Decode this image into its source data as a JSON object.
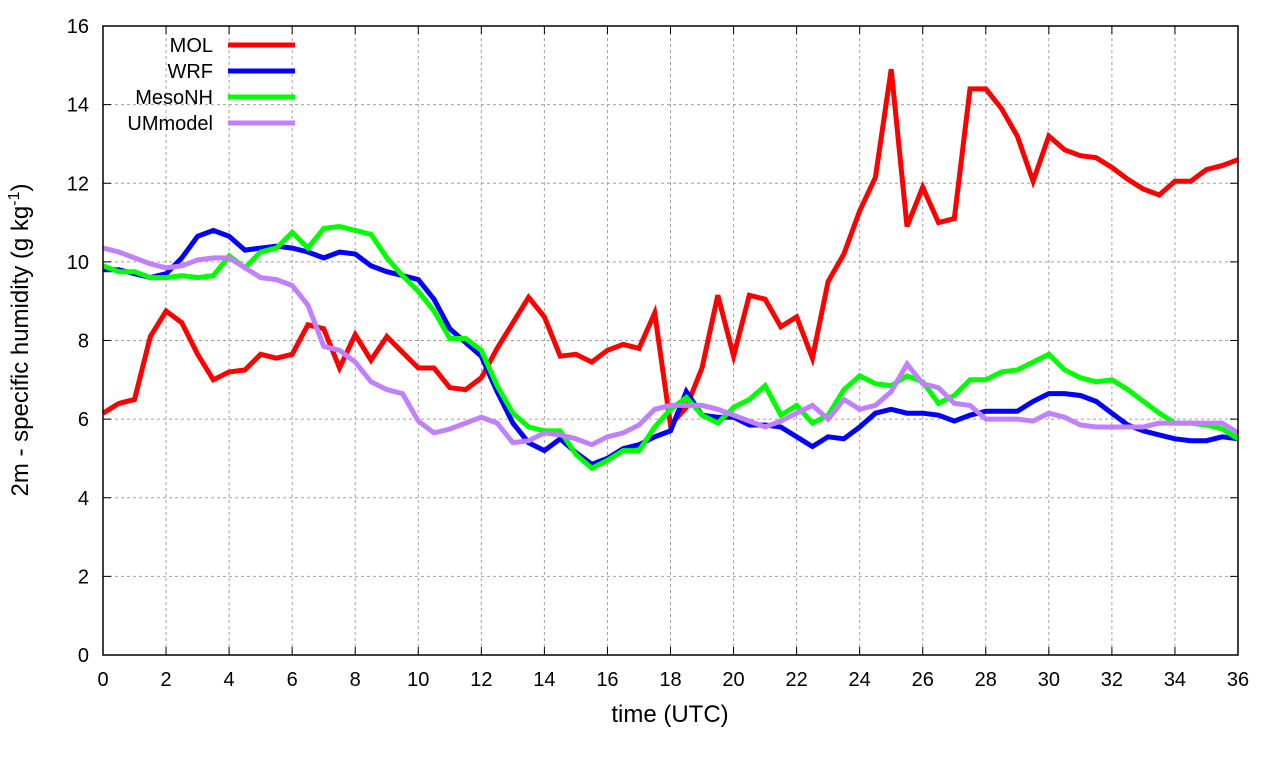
{
  "chart_data": {
    "type": "line",
    "title": "",
    "xlabel": "time (UTC)",
    "ylabel": "2m - specific humidity (g kg",
    "ylabel_sup": "-1",
    "ylabel_close": ")",
    "xlim": [
      0,
      36
    ],
    "ylim": [
      0,
      16
    ],
    "xticks": [
      0,
      2,
      4,
      6,
      8,
      10,
      12,
      14,
      16,
      18,
      20,
      22,
      24,
      26,
      28,
      30,
      32,
      34,
      36
    ],
    "yticks": [
      0,
      2,
      4,
      6,
      8,
      10,
      12,
      14,
      16
    ],
    "grid": true,
    "legend_position": "top-left",
    "x": [
      0,
      0.5,
      1,
      1.5,
      2,
      2.5,
      3,
      3.5,
      4,
      4.5,
      5,
      5.5,
      6,
      6.5,
      7,
      7.5,
      8,
      8.5,
      9,
      9.5,
      10,
      10.5,
      11,
      11.5,
      12,
      12.5,
      13,
      13.5,
      14,
      14.5,
      15,
      15.5,
      16,
      16.5,
      17,
      17.5,
      18,
      18.5,
      19,
      19.5,
      20,
      20.5,
      21,
      21.5,
      22,
      22.5,
      23,
      23.5,
      24,
      24.5,
      25,
      25.5,
      26,
      26.5,
      27,
      27.5,
      28,
      28.5,
      29,
      29.5,
      30,
      30.5,
      31,
      31.5,
      32,
      32.5,
      33,
      33.5,
      34,
      34.5,
      35,
      35.5,
      36
    ],
    "series": [
      {
        "name": "MOL",
        "color": "#ff0000",
        "values": [
          6.15,
          6.4,
          6.5,
          8.1,
          8.75,
          8.45,
          7.65,
          7.0,
          7.2,
          7.25,
          7.65,
          7.55,
          7.65,
          8.4,
          8.3,
          7.3,
          8.15,
          7.5,
          8.1,
          7.7,
          7.3,
          7.3,
          6.8,
          6.75,
          7.05,
          7.8,
          8.45,
          9.1,
          8.6,
          7.6,
          7.65,
          7.45,
          7.75,
          7.9,
          7.8,
          8.7,
          5.85,
          6.3,
          7.3,
          9.15,
          7.6,
          9.15,
          9.05,
          8.35,
          8.6,
          7.55,
          9.5,
          10.2,
          11.3,
          12.15,
          14.9,
          10.9,
          11.9,
          11.0,
          11.1,
          14.4,
          14.4,
          13.9,
          13.2,
          12.05,
          13.2,
          12.85,
          12.7,
          12.65,
          12.4,
          12.1,
          11.85,
          11.7,
          12.05,
          12.05,
          12.35,
          12.45,
          12.6
        ]
      },
      {
        "name": "WRF",
        "color": "#0000ff",
        "values": [
          9.8,
          9.8,
          9.7,
          9.6,
          9.7,
          10.1,
          10.65,
          10.8,
          10.65,
          10.3,
          10.35,
          10.4,
          10.35,
          10.25,
          10.1,
          10.25,
          10.2,
          9.9,
          9.75,
          9.65,
          9.55,
          9.05,
          8.3,
          7.95,
          7.6,
          6.7,
          5.9,
          5.4,
          5.2,
          5.5,
          5.15,
          4.85,
          5.0,
          5.25,
          5.35,
          5.55,
          5.7,
          6.7,
          6.1,
          6.05,
          6.05,
          5.85,
          5.85,
          5.8,
          5.55,
          5.3,
          5.55,
          5.5,
          5.8,
          6.15,
          6.25,
          6.15,
          6.15,
          6.1,
          5.95,
          6.1,
          6.2,
          6.2,
          6.2,
          6.45,
          6.65,
          6.65,
          6.6,
          6.45,
          6.15,
          5.85,
          5.7,
          5.6,
          5.5,
          5.45,
          5.45,
          5.55,
          5.5
        ]
      },
      {
        "name": "MesoNH",
        "color": "#00ff00",
        "values": [
          9.9,
          9.75,
          9.75,
          9.6,
          9.6,
          9.65,
          9.6,
          9.65,
          10.15,
          9.85,
          10.25,
          10.35,
          10.75,
          10.35,
          10.85,
          10.9,
          10.8,
          10.7,
          10.1,
          9.65,
          9.25,
          8.75,
          8.05,
          8.05,
          7.75,
          6.85,
          6.15,
          5.8,
          5.7,
          5.7,
          5.1,
          4.75,
          4.95,
          5.2,
          5.2,
          5.8,
          6.25,
          6.55,
          6.1,
          5.9,
          6.3,
          6.5,
          6.85,
          6.1,
          6.35,
          5.9,
          6.1,
          6.75,
          7.1,
          6.9,
          6.85,
          7.1,
          6.95,
          6.4,
          6.6,
          7.0,
          7.0,
          7.2,
          7.25,
          7.45,
          7.65,
          7.25,
          7.05,
          6.95,
          7.0,
          6.75,
          6.45,
          6.15,
          5.9,
          5.9,
          5.85,
          5.75,
          5.5
        ]
      },
      {
        "name": "UMmodel",
        "color": "#c080ff",
        "values": [
          10.35,
          10.25,
          10.1,
          9.95,
          9.85,
          9.9,
          10.05,
          10.1,
          10.1,
          9.85,
          9.6,
          9.55,
          9.4,
          8.9,
          7.85,
          7.75,
          7.45,
          6.95,
          6.75,
          6.65,
          5.95,
          5.65,
          5.75,
          5.9,
          6.05,
          5.9,
          5.4,
          5.45,
          5.65,
          5.6,
          5.5,
          5.35,
          5.55,
          5.65,
          5.85,
          6.25,
          6.35,
          6.35,
          6.35,
          6.25,
          6.1,
          5.95,
          5.8,
          5.95,
          6.15,
          6.35,
          6.0,
          6.5,
          6.25,
          6.35,
          6.7,
          7.4,
          6.9,
          6.8,
          6.4,
          6.35,
          6.0,
          6.0,
          6.0,
          5.95,
          6.15,
          6.05,
          5.85,
          5.8,
          5.8,
          5.8,
          5.8,
          5.9,
          5.9,
          5.9,
          5.9,
          5.9,
          5.65
        ]
      }
    ]
  }
}
